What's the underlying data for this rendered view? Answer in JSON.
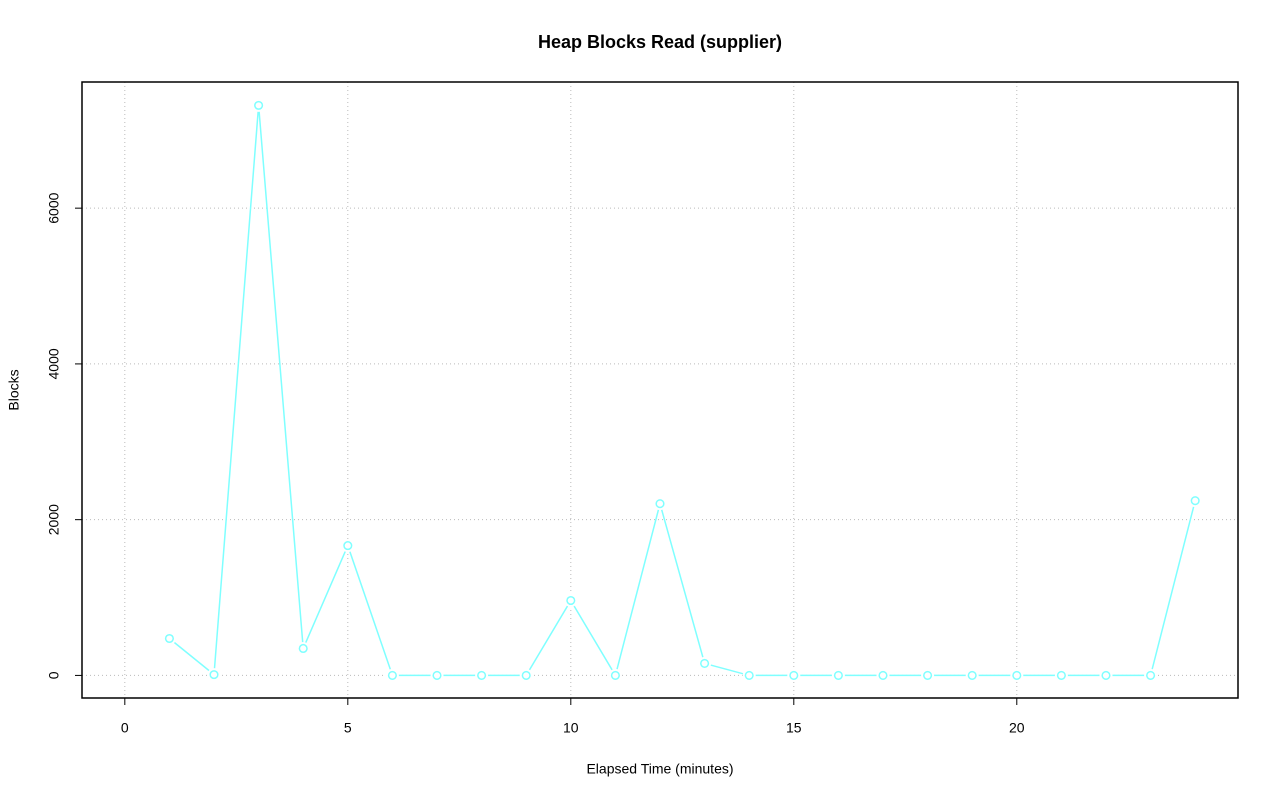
{
  "chart_data": {
    "type": "line",
    "title": "Heap Blocks Read (supplier)",
    "xlabel": "Elapsed Time (minutes)",
    "ylabel": "Blocks",
    "x": [
      1,
      2,
      3,
      4,
      5,
      6,
      7,
      8,
      9,
      10,
      11,
      12,
      13,
      14,
      15,
      16,
      17,
      18,
      19,
      20,
      21,
      22,
      23,
      24
    ],
    "series": [
      {
        "name": "supplier",
        "color": "#7fffff",
        "values": [
          474,
          10,
          7320,
          346,
          1667,
          0,
          0,
          0,
          0,
          962,
          0,
          2205,
          154,
          0,
          0,
          0,
          0,
          0,
          0,
          0,
          0,
          0,
          0,
          2244
        ]
      }
    ],
    "xlim": [
      -0.96,
      24.96
    ],
    "ylim": [
      -290,
      7620
    ],
    "xticks": [
      0,
      5,
      10,
      15,
      20
    ],
    "yticks": [
      0,
      2000,
      4000,
      6000
    ],
    "grid": true
  }
}
